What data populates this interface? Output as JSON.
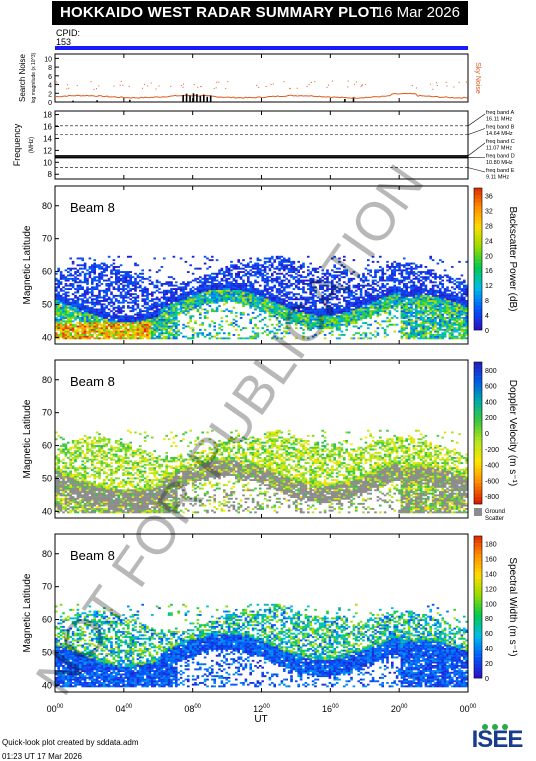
{
  "header": {
    "title": "HOKKAIDO WEST RADAR SUMMARY PLOT",
    "date": "16 Mar 2026"
  },
  "cpid": {
    "label": "CPID:",
    "value": "153"
  },
  "colors": {
    "cpid_bar": "#1a1aff",
    "sky_noise": "#e05a1e",
    "search_noise": "#000000",
    "ground_scatter": "#8c8c8c"
  },
  "noise_panel": {
    "ylabel": "Search Noise",
    "ylabel_sub": "log magnitude (x 10^3)",
    "yticks": [
      "0",
      "2",
      "4",
      "6",
      "8",
      "10"
    ],
    "legend": "Sky Noise"
  },
  "freq_panel": {
    "ylabel": "Frequency",
    "ylabel_unit": "(MHz)",
    "yticks": [
      "8",
      "10",
      "12",
      "14",
      "16",
      "18"
    ],
    "bands": [
      {
        "name": "freq band A",
        "freq": "16.11 MHz",
        "value": 16.11
      },
      {
        "name": "freq band B",
        "freq": "14.64 MHz",
        "value": 14.64
      },
      {
        "name": "freq band C",
        "freq": "11.07 MHz",
        "value": 11.07
      },
      {
        "name": "freq band D",
        "freq": "10.80 MHz",
        "value": 10.8
      },
      {
        "name": "freq band E",
        "freq": "9.11 MHz",
        "value": 9.11
      }
    ]
  },
  "chart_data": [
    {
      "type": "heatmap",
      "name": "backscatter power",
      "beam_label": "Beam  8",
      "ylabel": "Magnetic Latitude",
      "yticks": [
        "40",
        "50",
        "60",
        "70",
        "80"
      ],
      "ylim": [
        38,
        86
      ],
      "colorbar_label": "Backscatter Power (dB)",
      "colorbar_ticks": [
        "0",
        "4",
        "8",
        "12",
        "16",
        "20",
        "24",
        "28",
        "32",
        "36"
      ],
      "colorbar_range": [
        0,
        38
      ]
    },
    {
      "type": "heatmap",
      "name": "doppler velocity",
      "beam_label": "Beam  8",
      "ylabel": "Magnetic Latitude",
      "yticks": [
        "40",
        "50",
        "60",
        "70",
        "80"
      ],
      "ylim": [
        38,
        86
      ],
      "colorbar_label": "Doppler Velocity (m s⁻¹)",
      "colorbar_ticks": [
        "800",
        "600",
        "400",
        "200",
        "0",
        "-200",
        "-400",
        "-600",
        "-800"
      ],
      "colorbar_range": [
        -900,
        900
      ],
      "ground_scatter_label_1": "Ground",
      "ground_scatter_label_2": "Scatter"
    },
    {
      "type": "heatmap",
      "name": "spectral width",
      "beam_label": "Beam  8",
      "ylabel": "Magnetic Latitude",
      "yticks": [
        "40",
        "50",
        "60",
        "70",
        "80"
      ],
      "ylim": [
        38,
        86
      ],
      "colorbar_label": "Spectral Width (m s⁻¹)",
      "colorbar_ticks": [
        "0",
        "20",
        "40",
        "60",
        "80",
        "100",
        "120",
        "140",
        "160",
        "180"
      ],
      "colorbar_range": [
        0,
        190
      ]
    }
  ],
  "x_axis": {
    "ticks": [
      {
        "h": "00",
        "m": "00"
      },
      {
        "h": "04",
        "m": "00"
      },
      {
        "h": "08",
        "m": "00"
      },
      {
        "h": "12",
        "m": "00"
      },
      {
        "h": "16",
        "m": "00"
      },
      {
        "h": "20",
        "m": "00"
      },
      {
        "h": "00",
        "m": "00"
      }
    ],
    "label": "UT",
    "range_hours": [
      0,
      24
    ]
  },
  "footer": {
    "line1": "Quick-look plot created by sddata.adm",
    "line2": "01:23 UT 17 Mar 2026"
  },
  "logo": {
    "text": "ISEE"
  },
  "watermark": "NOT FOR PUBLICATION"
}
